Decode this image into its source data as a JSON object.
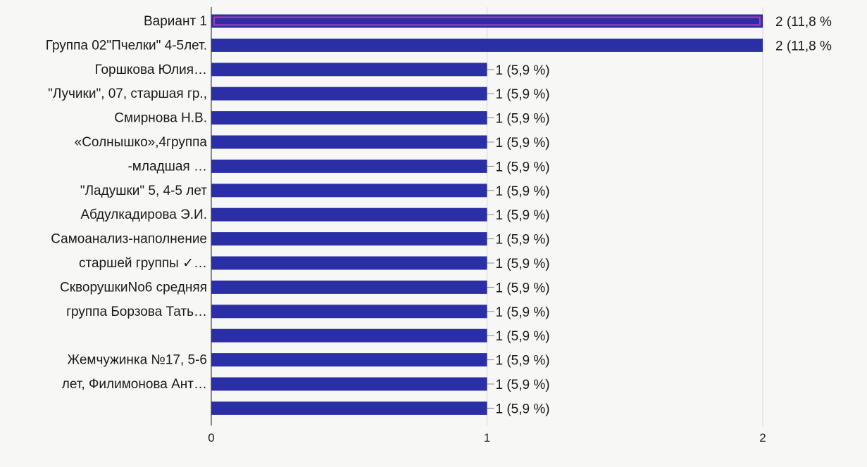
{
  "chart_data": {
    "type": "bar",
    "orientation": "horizontal",
    "categories": [
      "Вариант 1",
      "Группа 02\"Пчелки\" 4-5лет.",
      "Горшкова Юлия…",
      "\"Лучики\", 07, старшая гр.,",
      "Смирнова Н.В.",
      "«Солнышко»,4группа",
      "-младшая …",
      "\"Ладушки\" 5, 4-5 лет",
      "Абдулкадирова Э.И.",
      "Самоанализ-наполнение",
      "старшей группы ✓…",
      "СкворушкиNo6 средняя",
      "группа Борзова Тать…",
      "",
      "Жемчужинка №17, 5-6",
      "лет, Филимонова Ант…",
      ""
    ],
    "values": [
      2,
      2,
      1,
      1,
      1,
      1,
      1,
      1,
      1,
      1,
      1,
      1,
      1,
      1,
      1,
      1,
      1
    ],
    "data_labels": [
      "2 (11,8 %",
      "2 (11,8 %",
      "1 (5,9 %)",
      "1 (5,9 %)",
      "1 (5,9 %)",
      "1 (5,9 %)",
      "1 (5,9 %)",
      "1 (5,9 %)",
      "1 (5,9 %)",
      "1 (5,9 %)",
      "1 (5,9 %)",
      "1 (5,9 %)",
      "1 (5,9 %)",
      "1 (5,9 %)",
      "1 (5,9 %)",
      "1 (5,9 %)",
      "1 (5,9 %)"
    ],
    "selected_index": 0,
    "x_ticks": [
      0,
      1,
      2
    ],
    "x_tick_labels": [
      "0",
      "1",
      "2"
    ],
    "xlim": [
      0,
      2
    ],
    "title": "",
    "xlabel": "",
    "ylabel": "",
    "grid": true,
    "legend": "none",
    "colors": {
      "bar": "#2b2fa6",
      "bar_selected_outline": "#b03fb0",
      "grid": "#d9d9d9",
      "axis": "#666666",
      "leader": "#888888"
    }
  }
}
